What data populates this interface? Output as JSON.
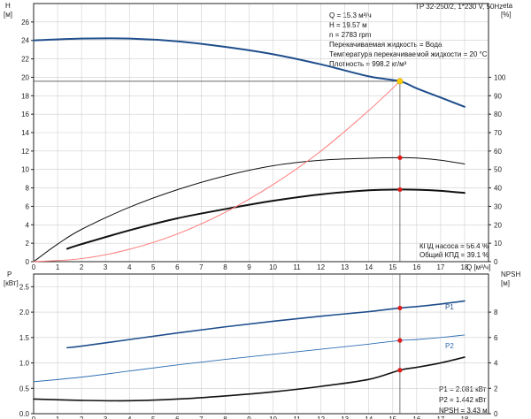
{
  "chart_data": [
    {
      "type": "line",
      "title": "TP 32-250/2, 1*230 V, 50Hz",
      "x_label": "Q [м³/ч]",
      "x_ticks": [
        0,
        1,
        2,
        3,
        4,
        5,
        6,
        7,
        8,
        9,
        10,
        11,
        12,
        13,
        14,
        15,
        16,
        17,
        18
      ],
      "xlim": [
        0,
        19
      ],
      "y_left_label_top": "H",
      "y_left_label_bottom": "[м]",
      "y_left_ticks": [
        0,
        2,
        4,
        6,
        8,
        10,
        12,
        14,
        16,
        18,
        20,
        22,
        24,
        26
      ],
      "y_left_lim": [
        0,
        28
      ],
      "y_right_label_top": "eta",
      "y_right_label_bottom": "[%]",
      "y_right_ticks": [
        0,
        10,
        20,
        30,
        40,
        50,
        60,
        70,
        80,
        90,
        100
      ],
      "y_right_lim": [
        0,
        140
      ],
      "grid": true,
      "series": [
        {
          "role": "head_H",
          "axis": "left",
          "color": "#1f4e8c",
          "width": 2.0,
          "x": [
            0,
            2,
            4,
            6,
            8,
            10,
            12,
            14,
            15.3,
            16,
            17,
            18
          ],
          "y": [
            24.0,
            24.2,
            24.2,
            23.9,
            23.3,
            22.5,
            21.4,
            20.1,
            19.57,
            18.8,
            17.8,
            16.8
          ]
        },
        {
          "role": "efficiency_total",
          "axis": "right",
          "color": "#111111",
          "width": 2.0,
          "x": [
            1.4,
            2,
            4,
            6,
            8,
            10,
            12,
            14,
            15.3,
            16,
            17,
            18
          ],
          "y": [
            7.0,
            9.5,
            17.0,
            23.5,
            28.5,
            33.0,
            36.5,
            38.7,
            39.1,
            39.0,
            38.4,
            37.3
          ]
        },
        {
          "role": "efficiency_pump",
          "axis": "right",
          "color": "#111111",
          "width": 1.0,
          "x": [
            0,
            1,
            2,
            4,
            6,
            8,
            10,
            12,
            14,
            15.3,
            16,
            17,
            18
          ],
          "y": [
            0,
            9.5,
            17.5,
            29.5,
            39.0,
            46.5,
            52.0,
            55.0,
            56.1,
            56.4,
            56.2,
            55.0,
            53.0
          ]
        },
        {
          "role": "system_curve",
          "axis": "left",
          "color": "#ff7a7a",
          "width": 1.0,
          "x": [
            0,
            2,
            4,
            6,
            8,
            10,
            12,
            14,
            15.3
          ],
          "y": [
            0,
            0.33,
            1.34,
            3.0,
            5.35,
            8.36,
            12.0,
            16.4,
            19.57
          ]
        }
      ],
      "operating_point": {
        "Q": 15.3,
        "H": 19.57,
        "eta_pump": 56.4,
        "eta_total": 39.1
      },
      "info_lines": [
        "Q = 15.3 м³/ч",
        "H = 19.57 м",
        "n = 2783 rpm",
        "Перекачиваемая жидкость = Вода",
        "Температура перекачиваемой жидкости = 20 °C",
        "Плотность = 998.2 кг/м³"
      ],
      "eff_lines": [
        "КПД насоса = 56.4 %",
        "Общий КПД = 39.1 %"
      ]
    },
    {
      "type": "line",
      "x_ticks": [
        0,
        1,
        2,
        3,
        4,
        5,
        6,
        7,
        8,
        9,
        10,
        11,
        12,
        13,
        14,
        15,
        16,
        17,
        18
      ],
      "xlim": [
        0,
        19
      ],
      "y_left_label_top": "P",
      "y_left_label_bottom": "[кВт]",
      "y_left_ticks": [
        0.0,
        0.5,
        1.0,
        1.5,
        2.0,
        2.5
      ],
      "y_left_lim": [
        0,
        2.75
      ],
      "y_right_label_top": "NPSH",
      "y_right_label_bottom": "[м]",
      "y_right_ticks": [
        0,
        2,
        4,
        6,
        8
      ],
      "y_right_lim": [
        0,
        11
      ],
      "grid": true,
      "series": [
        {
          "name": "P1",
          "axis": "left",
          "color": "#1f4e8c",
          "width": 1.6,
          "x": [
            1.4,
            2,
            4,
            6,
            8,
            10,
            12,
            14,
            15.3,
            16,
            17,
            18
          ],
          "y": [
            1.3,
            1.33,
            1.46,
            1.59,
            1.71,
            1.82,
            1.92,
            2.01,
            2.081,
            2.11,
            2.16,
            2.22
          ]
        },
        {
          "name": "P2",
          "axis": "left",
          "color": "#2e6db4",
          "width": 0.9,
          "x": [
            0,
            2,
            4,
            6,
            8,
            10,
            12,
            14,
            15.3,
            16,
            17,
            18
          ],
          "y": [
            0.63,
            0.72,
            0.84,
            0.96,
            1.07,
            1.17,
            1.27,
            1.37,
            1.442,
            1.46,
            1.5,
            1.55
          ]
        },
        {
          "role": "npsh",
          "axis": "right",
          "color": "#111111",
          "width": 1.6,
          "x": [
            0,
            2,
            4,
            6,
            8,
            10,
            12,
            14,
            15.3,
            16,
            17,
            18
          ],
          "y": [
            1.15,
            1.05,
            1.02,
            1.15,
            1.4,
            1.72,
            2.15,
            2.7,
            3.43,
            3.65,
            4.0,
            4.45
          ]
        }
      ],
      "operating_point": {
        "Q": 15.3,
        "P1": 2.081,
        "P2": 1.442,
        "NPSH": 3.43
      },
      "info_lines": [
        "P1 = 2.081 кВт",
        "P2 = 1.442 кВт",
        "NPSH = 3.43 м"
      ]
    }
  ]
}
